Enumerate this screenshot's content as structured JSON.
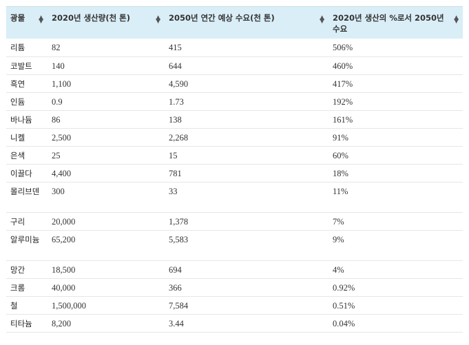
{
  "table": {
    "headers": [
      "광물",
      "2020년 생산량(천 톤)",
      "2050년 연간 예상 수요(천 톤)",
      "2020년 생산의 %로서 2050년 수요"
    ],
    "rows": [
      [
        "리튬",
        "82",
        "415",
        "506%"
      ],
      [
        "코발트",
        "140",
        "644",
        "460%"
      ],
      [
        "흑연",
        "1,100",
        "4,590",
        "417%"
      ],
      [
        "인듐",
        "0.9",
        "1.73",
        "192%"
      ],
      [
        "바나듐",
        "86",
        "138",
        "161%"
      ],
      [
        "니켈",
        "2,500",
        "2,268",
        "91%"
      ],
      [
        "은색",
        "25",
        "15",
        "60%"
      ],
      [
        "이끌다",
        "4,400",
        "781",
        "18%"
      ],
      [
        "몰리브덴",
        "300",
        "33",
        "11%"
      ],
      [
        "구리",
        "20,000",
        "1,378",
        "7%"
      ],
      [
        "알루미늄",
        "65,200",
        "5,583",
        "9%"
      ],
      [
        "망간",
        "18,500",
        "694",
        "4%"
      ],
      [
        "크롬",
        "40,000",
        "366",
        "0.92%"
      ],
      [
        "철",
        "1,500,000",
        "7,584",
        "0.51%"
      ],
      [
        "티타늄",
        "8,200",
        "3.44",
        "0.04%"
      ]
    ]
  },
  "icons": {
    "sort": "sort-arrows-icon"
  }
}
